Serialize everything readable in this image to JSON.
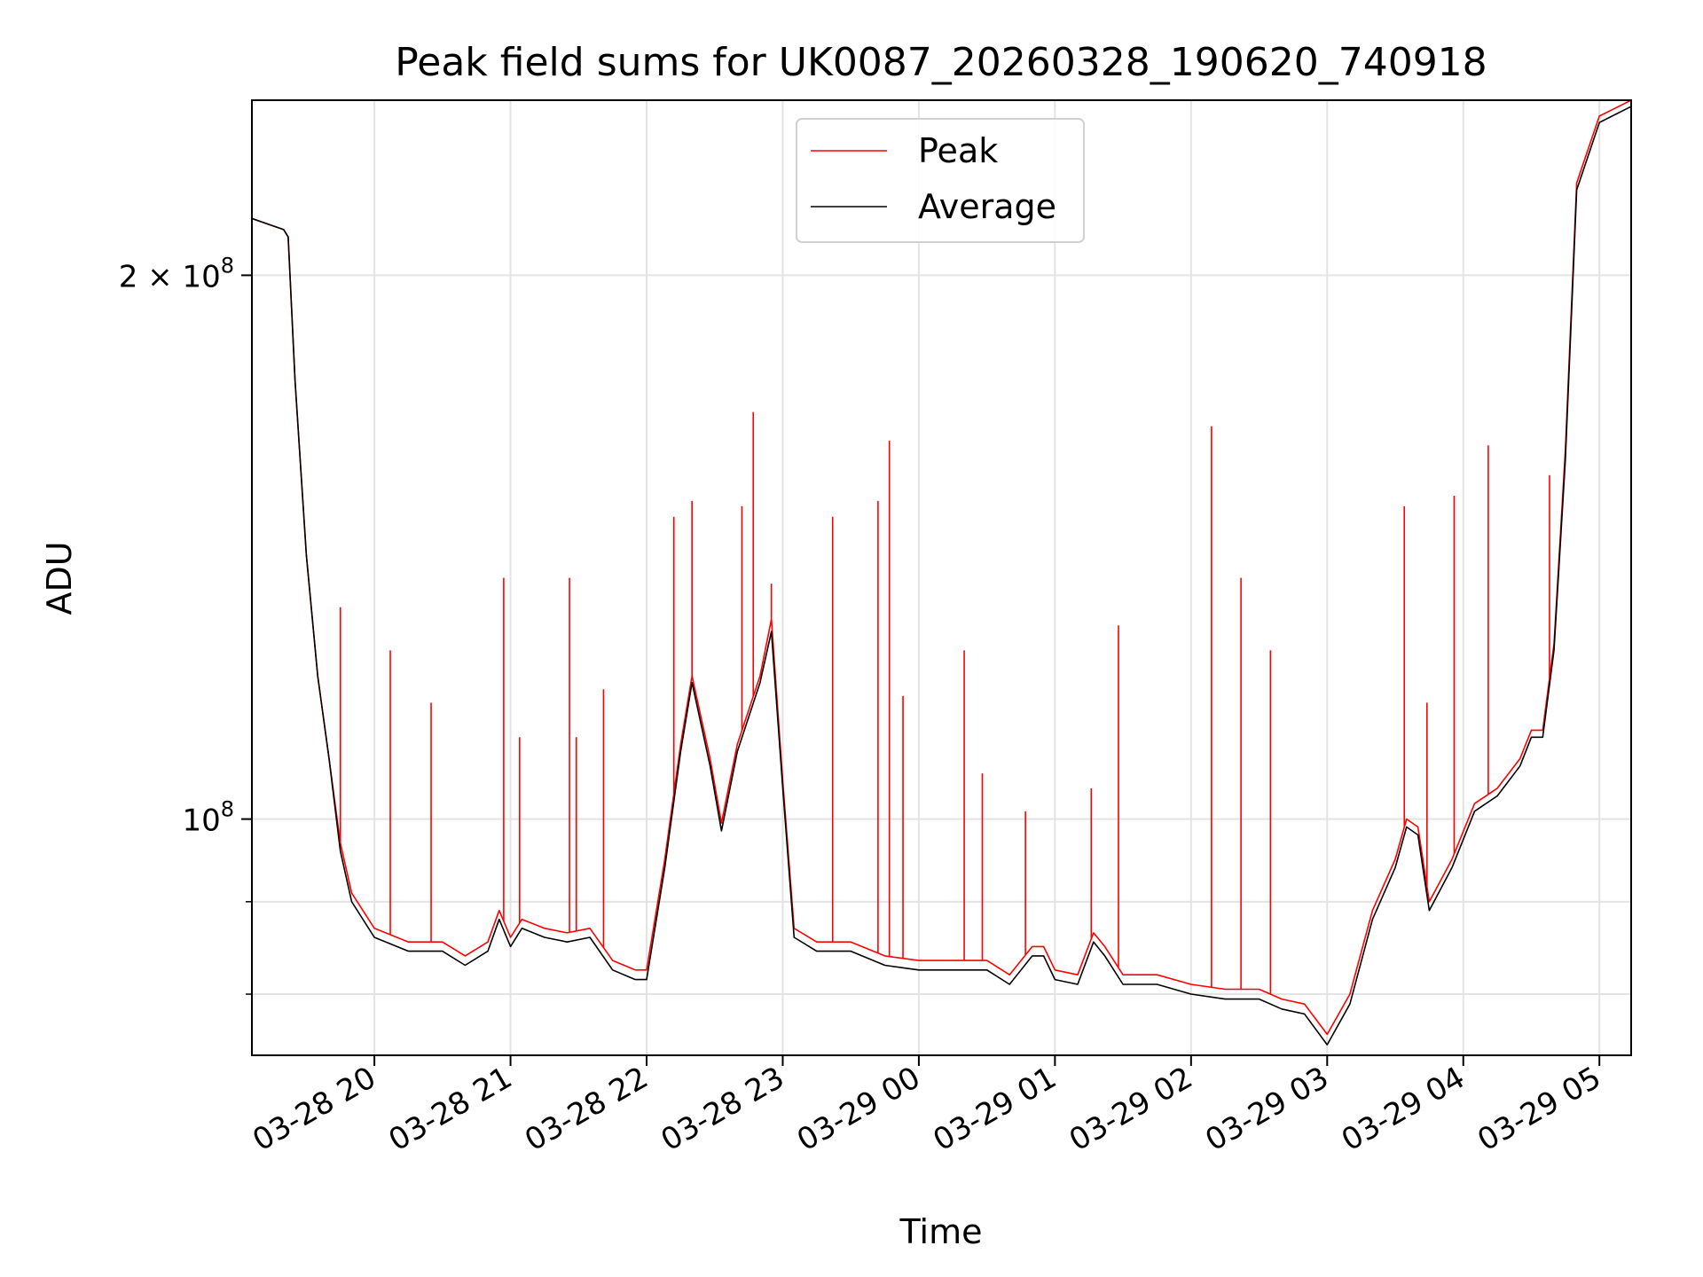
{
  "chart_data": {
    "type": "line",
    "title": "Peak field sums for UK0087_20260328_190620_740918",
    "xlabel": "Time",
    "ylabel": "ADU",
    "yscale": "log",
    "grid": true,
    "legend_placement": "upper center",
    "x_ticks": [
      "03-28 20",
      "03-28 21",
      "03-28 22",
      "03-28 23",
      "03-29 00",
      "03-29 01",
      "03-29 02",
      "03-29 03",
      "03-29 04",
      "03-29 05"
    ],
    "y_major_ticks": [
      {
        "value": 100000000,
        "base": "10",
        "exp": "8",
        "prefix": ""
      },
      {
        "value": 200000000,
        "base": "10",
        "exp": "8",
        "prefix": "2 × "
      }
    ],
    "y_minor_gridlines": [
      80000000,
      90000000
    ],
    "xlim": [
      "2026-03-28 19:06",
      "2026-03-29 05:14"
    ],
    "ylim": [
      74000000,
      250000000
    ],
    "series": [
      {
        "name": "Peak",
        "color": "#ff0000",
        "points": [
          [
            "2026-03-28 19:06",
            215000000
          ],
          [
            "2026-03-28 19:20",
            212000000
          ],
          [
            "2026-03-28 19:22",
            210000000
          ],
          [
            "2026-03-28 19:25",
            175000000
          ],
          [
            "2026-03-28 19:30",
            140000000
          ],
          [
            "2026-03-28 19:35",
            120000000
          ],
          [
            "2026-03-28 19:40",
            108000000
          ],
          [
            "2026-03-28 19:45",
            97000000
          ],
          [
            "2026-03-28 19:50",
            91000000
          ],
          [
            "2026-03-28 20:00",
            87000000
          ],
          [
            "2026-03-28 20:15",
            85500000
          ],
          [
            "2026-03-28 20:30",
            85500000
          ],
          [
            "2026-03-28 20:40",
            84000000
          ],
          [
            "2026-03-28 20:50",
            85500000
          ],
          [
            "2026-03-28 20:55",
            89000000
          ],
          [
            "2026-03-28 21:00",
            86000000
          ],
          [
            "2026-03-28 21:05",
            88000000
          ],
          [
            "2026-03-28 21:15",
            87000000
          ],
          [
            "2026-03-28 21:25",
            86500000
          ],
          [
            "2026-03-28 21:35",
            87000000
          ],
          [
            "2026-03-28 21:45",
            83500000
          ],
          [
            "2026-03-28 21:55",
            82500000
          ],
          [
            "2026-03-28 22:00",
            82500000
          ],
          [
            "2026-03-28 22:08",
            95000000
          ],
          [
            "2026-03-28 22:15",
            110000000
          ],
          [
            "2026-03-28 22:20",
            120000000
          ],
          [
            "2026-03-28 22:28",
            108000000
          ],
          [
            "2026-03-28 22:33",
            99500000
          ],
          [
            "2026-03-28 22:40",
            110000000
          ],
          [
            "2026-03-28 22:50",
            120000000
          ],
          [
            "2026-03-28 22:55",
            129000000
          ],
          [
            "2026-03-28 23:00",
            105000000
          ],
          [
            "2026-03-28 23:05",
            87000000
          ],
          [
            "2026-03-28 23:15",
            85500000
          ],
          [
            "2026-03-28 23:30",
            85500000
          ],
          [
            "2026-03-28 23:45",
            84000000
          ],
          [
            "2026-03-29 00:00",
            83500000
          ],
          [
            "2026-03-29 00:15",
            83500000
          ],
          [
            "2026-03-29 00:30",
            83500000
          ],
          [
            "2026-03-29 00:40",
            82000000
          ],
          [
            "2026-03-29 00:50",
            85000000
          ],
          [
            "2026-03-29 00:55",
            85000000
          ],
          [
            "2026-03-29 01:00",
            82500000
          ],
          [
            "2026-03-29 01:10",
            82000000
          ],
          [
            "2026-03-29 01:17",
            86500000
          ],
          [
            "2026-03-29 01:22",
            85000000
          ],
          [
            "2026-03-29 01:30",
            82000000
          ],
          [
            "2026-03-29 01:45",
            82000000
          ],
          [
            "2026-03-29 02:00",
            81000000
          ],
          [
            "2026-03-29 02:15",
            80500000
          ],
          [
            "2026-03-29 02:30",
            80500000
          ],
          [
            "2026-03-29 02:40",
            79500000
          ],
          [
            "2026-03-29 02:50",
            79000000
          ],
          [
            "2026-03-29 03:00",
            76000000
          ],
          [
            "2026-03-29 03:10",
            80000000
          ],
          [
            "2026-03-29 03:20",
            89000000
          ],
          [
            "2026-03-29 03:30",
            95000000
          ],
          [
            "2026-03-29 03:35",
            100000000
          ],
          [
            "2026-03-29 03:40",
            99000000
          ],
          [
            "2026-03-29 03:45",
            90000000
          ],
          [
            "2026-03-29 03:55",
            95000000
          ],
          [
            "2026-03-29 04:05",
            102000000
          ],
          [
            "2026-03-29 04:15",
            104000000
          ],
          [
            "2026-03-29 04:25",
            108000000
          ],
          [
            "2026-03-29 04:30",
            112000000
          ],
          [
            "2026-03-29 04:35",
            112000000
          ],
          [
            "2026-03-29 04:40",
            125000000
          ],
          [
            "2026-03-29 04:45",
            160000000
          ],
          [
            "2026-03-29 04:50",
            225000000
          ],
          [
            "2026-03-29 05:00",
            245000000
          ],
          [
            "2026-03-29 05:14",
            250000000
          ]
        ]
      },
      {
        "name": "Average",
        "color": "#000000",
        "points": [
          [
            "2026-03-28 19:06",
            215000000
          ],
          [
            "2026-03-28 19:20",
            212000000
          ],
          [
            "2026-03-28 19:22",
            210000000
          ],
          [
            "2026-03-28 19:25",
            175000000
          ],
          [
            "2026-03-28 19:30",
            140000000
          ],
          [
            "2026-03-28 19:35",
            120000000
          ],
          [
            "2026-03-28 19:40",
            108000000
          ],
          [
            "2026-03-28 19:45",
            96000000
          ],
          [
            "2026-03-28 19:50",
            90000000
          ],
          [
            "2026-03-28 20:00",
            86000000
          ],
          [
            "2026-03-28 20:15",
            84500000
          ],
          [
            "2026-03-28 20:30",
            84500000
          ],
          [
            "2026-03-28 20:40",
            83000000
          ],
          [
            "2026-03-28 20:50",
            84500000
          ],
          [
            "2026-03-28 20:55",
            88000000
          ],
          [
            "2026-03-28 21:00",
            85000000
          ],
          [
            "2026-03-28 21:05",
            87000000
          ],
          [
            "2026-03-28 21:15",
            86000000
          ],
          [
            "2026-03-28 21:25",
            85500000
          ],
          [
            "2026-03-28 21:35",
            86000000
          ],
          [
            "2026-03-28 21:45",
            82500000
          ],
          [
            "2026-03-28 21:55",
            81500000
          ],
          [
            "2026-03-28 22:00",
            81500000
          ],
          [
            "2026-03-28 22:08",
            94000000
          ],
          [
            "2026-03-28 22:15",
            109000000
          ],
          [
            "2026-03-28 22:20",
            119000000
          ],
          [
            "2026-03-28 22:28",
            107000000
          ],
          [
            "2026-03-28 22:33",
            98500000
          ],
          [
            "2026-03-28 22:40",
            109000000
          ],
          [
            "2026-03-28 22:50",
            119000000
          ],
          [
            "2026-03-28 22:55",
            127000000
          ],
          [
            "2026-03-28 23:00",
            104000000
          ],
          [
            "2026-03-28 23:05",
            86000000
          ],
          [
            "2026-03-28 23:15",
            84500000
          ],
          [
            "2026-03-28 23:30",
            84500000
          ],
          [
            "2026-03-28 23:45",
            83000000
          ],
          [
            "2026-03-29 00:00",
            82500000
          ],
          [
            "2026-03-29 00:15",
            82500000
          ],
          [
            "2026-03-29 00:30",
            82500000
          ],
          [
            "2026-03-29 00:40",
            81000000
          ],
          [
            "2026-03-29 00:50",
            84000000
          ],
          [
            "2026-03-29 00:55",
            84000000
          ],
          [
            "2026-03-29 01:00",
            81500000
          ],
          [
            "2026-03-29 01:10",
            81000000
          ],
          [
            "2026-03-29 01:17",
            85500000
          ],
          [
            "2026-03-29 01:22",
            84000000
          ],
          [
            "2026-03-29 01:30",
            81000000
          ],
          [
            "2026-03-29 01:45",
            81000000
          ],
          [
            "2026-03-29 02:00",
            80000000
          ],
          [
            "2026-03-29 02:15",
            79500000
          ],
          [
            "2026-03-29 02:30",
            79500000
          ],
          [
            "2026-03-29 02:40",
            78500000
          ],
          [
            "2026-03-29 02:50",
            78000000
          ],
          [
            "2026-03-29 03:00",
            75000000
          ],
          [
            "2026-03-29 03:10",
            79000000
          ],
          [
            "2026-03-29 03:20",
            88000000
          ],
          [
            "2026-03-29 03:30",
            94000000
          ],
          [
            "2026-03-29 03:35",
            99000000
          ],
          [
            "2026-03-29 03:40",
            98000000
          ],
          [
            "2026-03-29 03:45",
            89000000
          ],
          [
            "2026-03-29 03:55",
            94000000
          ],
          [
            "2026-03-29 04:05",
            101000000
          ],
          [
            "2026-03-29 04:15",
            103000000
          ],
          [
            "2026-03-29 04:25",
            107000000
          ],
          [
            "2026-03-29 04:30",
            111000000
          ],
          [
            "2026-03-29 04:35",
            111000000
          ],
          [
            "2026-03-29 04:40",
            124000000
          ],
          [
            "2026-03-29 04:45",
            158000000
          ],
          [
            "2026-03-29 04:50",
            223000000
          ],
          [
            "2026-03-29 05:00",
            243000000
          ],
          [
            "2026-03-29 05:14",
            248000000
          ]
        ]
      }
    ],
    "peak_spikes": [
      [
        "2026-03-28 19:45",
        131000000
      ],
      [
        "2026-03-28 20:07",
        124000000
      ],
      [
        "2026-03-28 20:25",
        116000000
      ],
      [
        "2026-03-28 20:57",
        136000000
      ],
      [
        "2026-03-28 21:04",
        111000000
      ],
      [
        "2026-03-28 21:26",
        136000000
      ],
      [
        "2026-03-28 21:29",
        111000000
      ],
      [
        "2026-03-28 21:41",
        118000000
      ],
      [
        "2026-03-28 22:12",
        147000000
      ],
      [
        "2026-03-28 22:20",
        150000000
      ],
      [
        "2026-03-28 22:42",
        149000000
      ],
      [
        "2026-03-28 22:47",
        168000000
      ],
      [
        "2026-03-28 22:55",
        135000000
      ],
      [
        "2026-03-28 23:22",
        147000000
      ],
      [
        "2026-03-28 23:42",
        150000000
      ],
      [
        "2026-03-28 23:47",
        162000000
      ],
      [
        "2026-03-28 23:53",
        117000000
      ],
      [
        "2026-03-29 00:20",
        124000000
      ],
      [
        "2026-03-29 00:28",
        106000000
      ],
      [
        "2026-03-29 00:47",
        101000000
      ],
      [
        "2026-03-29 01:16",
        104000000
      ],
      [
        "2026-03-29 01:28",
        128000000
      ],
      [
        "2026-03-29 02:09",
        165000000
      ],
      [
        "2026-03-29 02:22",
        136000000
      ],
      [
        "2026-03-29 02:35",
        124000000
      ],
      [
        "2026-03-29 03:34",
        149000000
      ],
      [
        "2026-03-29 03:44",
        116000000
      ],
      [
        "2026-03-29 03:56",
        151000000
      ],
      [
        "2026-03-29 04:11",
        161000000
      ],
      [
        "2026-03-29 04:38",
        155000000
      ]
    ],
    "legend": [
      "Peak",
      "Average"
    ]
  }
}
